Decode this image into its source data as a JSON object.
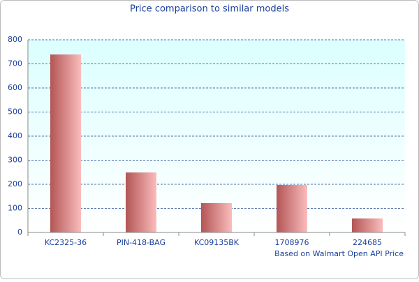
{
  "chart_data": {
    "type": "bar",
    "title": "Price comparison to similar models",
    "annotation": "Based on Walmart Open API Price",
    "categories": [
      "KC2325-36",
      "PIN-418-BAG",
      "KC09135BK",
      "1708976",
      "224685"
    ],
    "values": [
      739,
      249,
      122,
      197,
      58
    ],
    "ylim": [
      0,
      800
    ],
    "yticks": [
      0,
      100,
      200,
      300,
      400,
      500,
      600,
      700,
      800
    ],
    "grid": true
  }
}
